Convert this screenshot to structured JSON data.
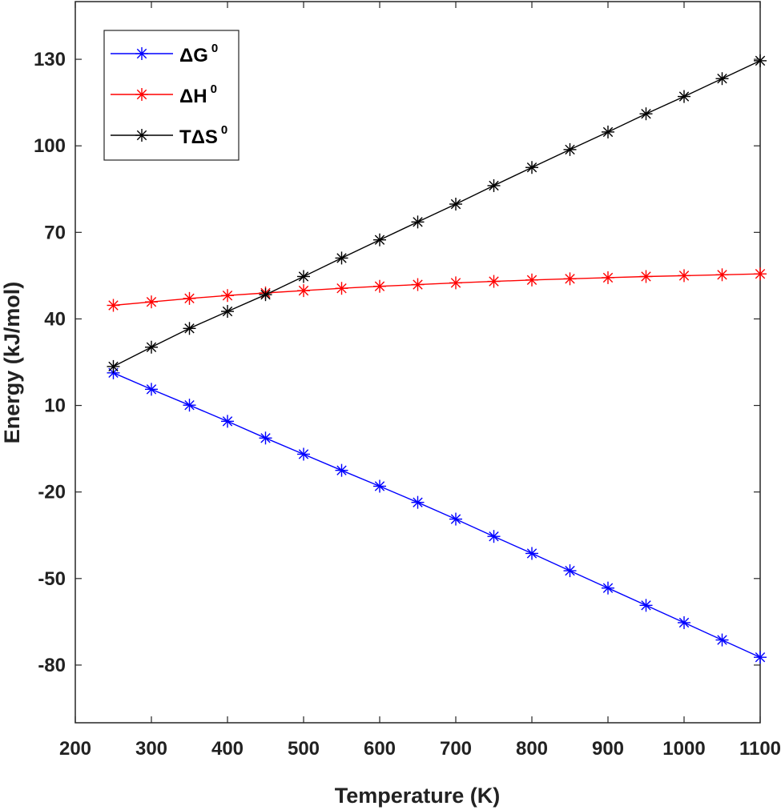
{
  "chart_data": {
    "type": "line",
    "xlabel": "Temperature (K)",
    "ylabel": "Energy (kJ/mol)",
    "xlim": [
      200,
      1100
    ],
    "ylim": [
      -100,
      150
    ],
    "xticks": [
      200,
      300,
      400,
      500,
      600,
      700,
      800,
      900,
      1000,
      1100
    ],
    "yticks": [
      -80,
      -50,
      -20,
      10,
      40,
      70,
      100,
      130
    ],
    "x": [
      250,
      300,
      350,
      400,
      450,
      500,
      550,
      600,
      650,
      700,
      750,
      800,
      850,
      900,
      950,
      1000,
      1050,
      1100
    ],
    "series": [
      {
        "name": "ΔG0",
        "name_main": "ΔG",
        "name_sup": "0",
        "color": "#0000ff",
        "marker": "asterisk",
        "values": [
          21.3,
          15.6,
          10.1,
          4.5,
          -1.3,
          -6.9,
          -12.5,
          -18.0,
          -23.6,
          -29.4,
          -35.4,
          -41.3,
          -47.3,
          -53.3,
          -59.3,
          -65.3,
          -71.3,
          -77.3
        ]
      },
      {
        "name": "ΔH0",
        "name_main": "ΔH",
        "name_sup": "0",
        "color": "#ff0000",
        "marker": "asterisk",
        "values": [
          44.7,
          45.9,
          47.1,
          48.1,
          49.0,
          49.8,
          50.6,
          51.3,
          51.9,
          52.5,
          53.0,
          53.5,
          53.9,
          54.3,
          54.7,
          55.0,
          55.3,
          55.6
        ]
      },
      {
        "name": "TΔS0",
        "name_main": "TΔS",
        "name_sup": "0",
        "color": "#000000",
        "marker": "asterisk",
        "values": [
          23.5,
          30.2,
          36.7,
          42.6,
          48.4,
          54.7,
          61.1,
          67.4,
          73.6,
          79.8,
          86.2,
          92.5,
          98.7,
          104.8,
          111.1,
          117.1,
          123.3,
          129.5
        ]
      }
    ],
    "grid": false,
    "legend_position": "top-left"
  }
}
